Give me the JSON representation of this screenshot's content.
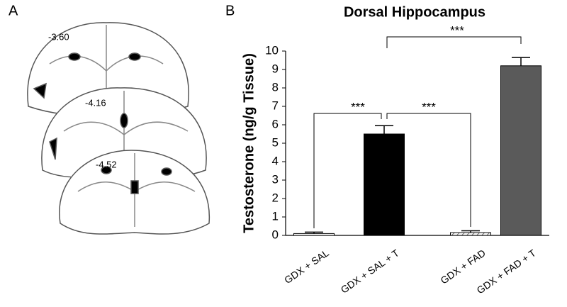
{
  "panel_labels": [
    "A",
    "B"
  ],
  "sections": [
    "-3.60",
    "-4.16",
    "-4.52"
  ],
  "chart_data": {
    "type": "bar",
    "title": "Dorsal Hippocampus",
    "y_label": "Testosterone (ng/g Tissue)",
    "categories": [
      "GDX + SAL",
      "GDX + SAL + T",
      "GDX + FAD",
      "GDX + FAD + T"
    ],
    "values": [
      0.1,
      5.5,
      0.15,
      9.2
    ],
    "errors": [
      0.08,
      0.45,
      0.1,
      0.45
    ],
    "colors": [
      "#ffffff",
      "#000000",
      "#ffffff",
      "#5a5a5a"
    ],
    "hatch": [
      false,
      false,
      true,
      false
    ],
    "ylim": [
      0,
      10
    ],
    "yticks": [
      0,
      1,
      2,
      3,
      4,
      5,
      6,
      7,
      8,
      9,
      10
    ],
    "annotations": [
      "***",
      "***",
      "***"
    ]
  }
}
